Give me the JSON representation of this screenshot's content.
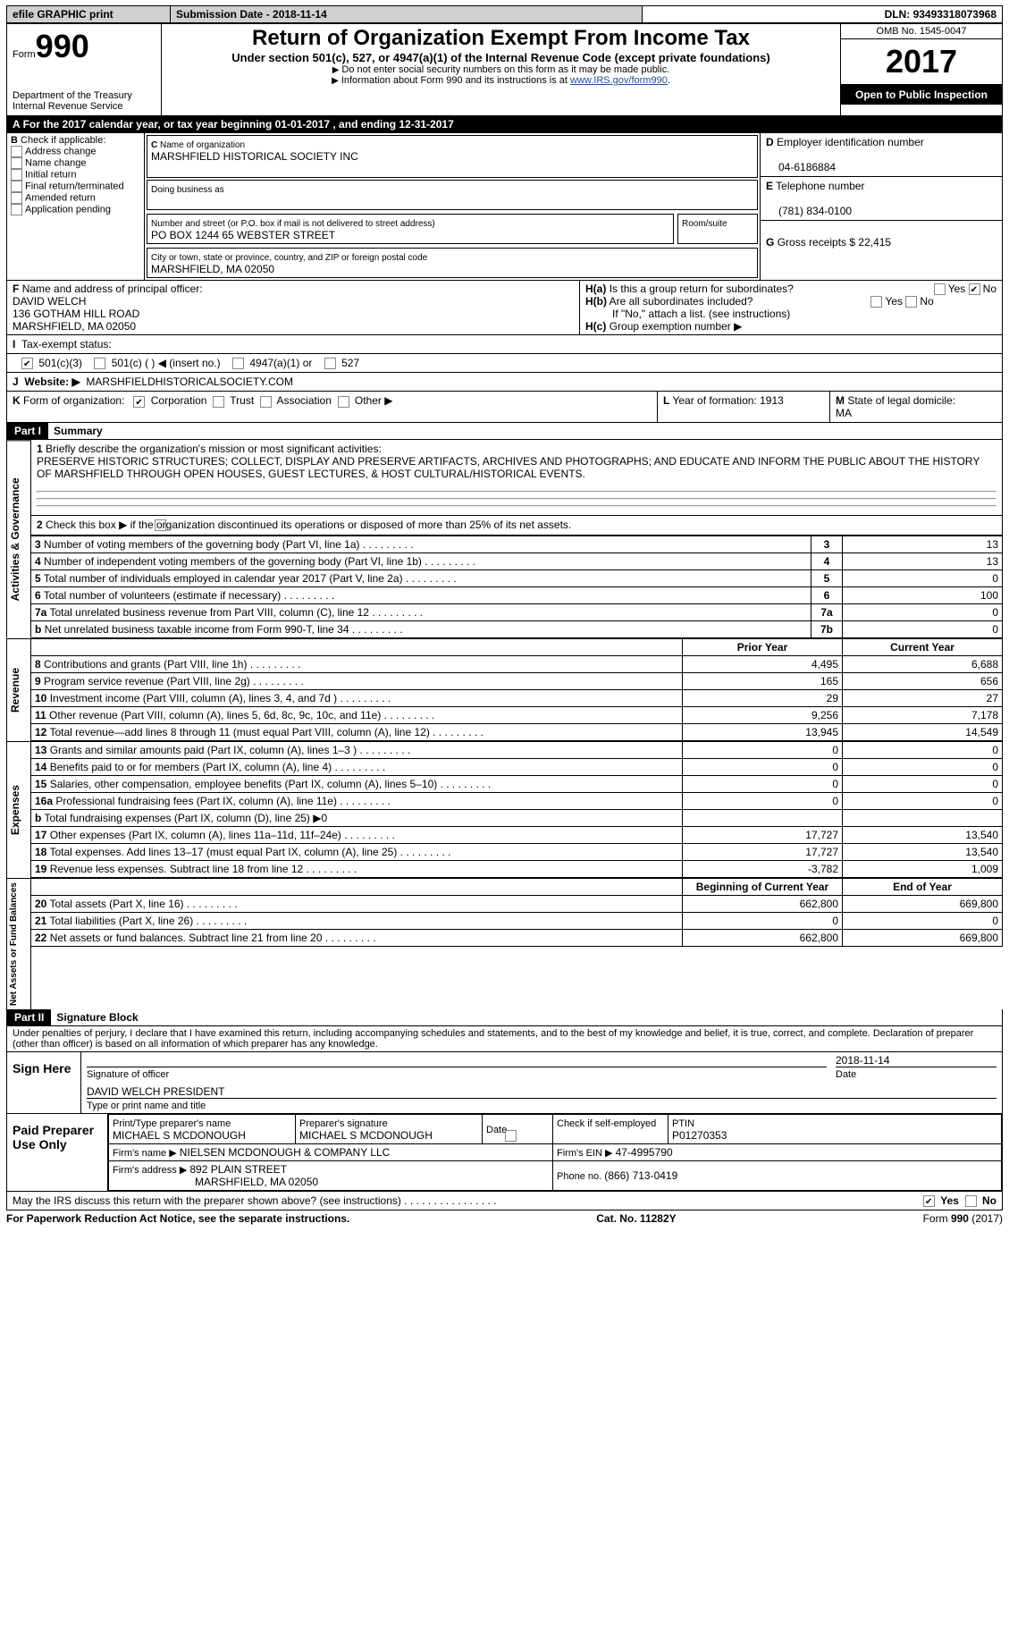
{
  "topbar": {
    "efile": "efile GRAPHIC print",
    "sub_lbl": "Submission Date - ",
    "sub_date": "2018-11-14",
    "dln_lbl": "DLN: ",
    "dln": "93493318073968"
  },
  "header": {
    "form_word": "Form",
    "form_no": "990",
    "dept1": "Department of the Treasury",
    "dept2": "Internal Revenue Service",
    "title": "Return of Organization Exempt From Income Tax",
    "sub": "Under section 501(c), 527, or 4947(a)(1) of the Internal Revenue Code (except private foundations)",
    "note1": "Do not enter social security numbers on this form as it may be made public.",
    "note2": "Information about Form 990 and its instructions is at ",
    "link": "www.IRS.gov/form990",
    "omb": "OMB No. 1545-0047",
    "year": "2017",
    "open": "Open to Public Inspection"
  },
  "a_line": "For the 2017 calendar year, or tax year beginning 01-01-2017    , and ending 12-31-2017",
  "b": {
    "lbl": "Check if applicable:",
    "addr": "Address change",
    "name": "Name change",
    "init": "Initial return",
    "final": "Final return/terminated",
    "amend": "Amended return",
    "app": "Application pending"
  },
  "c": {
    "name_lbl": "Name of organization",
    "name": "MARSHFIELD HISTORICAL SOCIETY INC",
    "dba_lbl": "Doing business as",
    "street_lbl": "Number and street (or P.O. box if mail is not delivered to street address)",
    "room_lbl": "Room/suite",
    "street": "PO BOX 1244 65 WEBSTER STREET",
    "city_lbl": "City or town, state or province, country, and ZIP or foreign postal code",
    "city": "MARSHFIELD, MA  02050"
  },
  "d": {
    "lbl": "Employer identification number",
    "val": "04-6186884"
  },
  "e": {
    "lbl": "Telephone number",
    "val": "(781) 834-0100"
  },
  "g": {
    "lbl": "Gross receipts $ ",
    "val": "22,415"
  },
  "f": {
    "lbl": "Name and address of principal officer:",
    "name": "DAVID WELCH",
    "addr1": "136 GOTHAM HILL ROAD",
    "addr2": "MARSHFIELD, MA  02050"
  },
  "h": {
    "a": "Is this a group return for subordinates?",
    "b": "Are all subordinates included?",
    "b_note": "If \"No,\" attach a list. (see instructions)",
    "c": "Group exemption number ▶",
    "yes": "Yes",
    "no": "No"
  },
  "i": {
    "lbl": "Tax-exempt status:",
    "o1": "501(c)(3)",
    "o2": "501(c) (   ) ◀ (insert no.)",
    "o3": "4947(a)(1) or",
    "o4": "527"
  },
  "j": {
    "lbl": "Website: ▶",
    "val": "MARSHFIELDHISTORICALSOCIETY.COM"
  },
  "k": {
    "lbl": "Form of organization:",
    "o1": "Corporation",
    "o2": "Trust",
    "o3": "Association",
    "o4": "Other ▶"
  },
  "l": {
    "lbl": "Year of formation: ",
    "val": "1913"
  },
  "m": {
    "lbl": "State of legal domicile:",
    "val": "MA"
  },
  "part1": {
    "hdr": "Part I",
    "title": "Summary",
    "vert1": "Activities & Governance",
    "vert2": "Revenue",
    "vert3": "Expenses",
    "vert4": "Net Assets or Fund Balances",
    "l1_lbl": "Briefly describe the organization's mission or most significant activities:",
    "l1_txt": "PRESERVE HISTORIC STRUCTURES; COLLECT, DISPLAY AND PRESERVE ARTIFACTS, ARCHIVES AND PHOTOGRAPHS; AND EDUCATE AND INFORM THE PUBLIC ABOUT THE HISTORY OF MARSHFIELD THROUGH OPEN HOUSES, GUEST LECTURES, & HOST CULTURAL/HISTORICAL EVENTS.",
    "l2": "Check this box ▶       if the organization discontinued its operations or disposed of more than 25% of its net assets.",
    "rows_ag": [
      {
        "n": "3",
        "t": "Number of voting members of the governing body (Part VI, line 1a)",
        "b": "3",
        "v": "13"
      },
      {
        "n": "4",
        "t": "Number of independent voting members of the governing body (Part VI, line 1b)",
        "b": "4",
        "v": "13"
      },
      {
        "n": "5",
        "t": "Total number of individuals employed in calendar year 2017 (Part V, line 2a)",
        "b": "5",
        "v": "0"
      },
      {
        "n": "6",
        "t": "Total number of volunteers (estimate if necessary)",
        "b": "6",
        "v": "100"
      },
      {
        "n": "7a",
        "t": "Total unrelated business revenue from Part VIII, column (C), line 12",
        "b": "7a",
        "v": "0"
      },
      {
        "n": "b",
        "t": "Net unrelated business taxable income from Form 990-T, line 34",
        "b": "7b",
        "v": "0"
      }
    ],
    "col_prior": "Prior Year",
    "col_curr": "Current Year",
    "rows_rev": [
      {
        "n": "8",
        "t": "Contributions and grants (Part VIII, line 1h)",
        "p": "4,495",
        "c": "6,688"
      },
      {
        "n": "9",
        "t": "Program service revenue (Part VIII, line 2g)",
        "p": "165",
        "c": "656"
      },
      {
        "n": "10",
        "t": "Investment income (Part VIII, column (A), lines 3, 4, and 7d )",
        "p": "29",
        "c": "27"
      },
      {
        "n": "11",
        "t": "Other revenue (Part VIII, column (A), lines 5, 6d, 8c, 9c, 10c, and 11e)",
        "p": "9,256",
        "c": "7,178"
      },
      {
        "n": "12",
        "t": "Total revenue—add lines 8 through 11 (must equal Part VIII, column (A), line 12)",
        "p": "13,945",
        "c": "14,549"
      }
    ],
    "rows_exp": [
      {
        "n": "13",
        "t": "Grants and similar amounts paid (Part IX, column (A), lines 1–3 )",
        "p": "0",
        "c": "0"
      },
      {
        "n": "14",
        "t": "Benefits paid to or for members (Part IX, column (A), line 4)",
        "p": "0",
        "c": "0"
      },
      {
        "n": "15",
        "t": "Salaries, other compensation, employee benefits (Part IX, column (A), lines 5–10)",
        "p": "0",
        "c": "0"
      },
      {
        "n": "16a",
        "t": "Professional fundraising fees (Part IX, column (A), line 11e)",
        "p": "0",
        "c": "0"
      },
      {
        "n": "b",
        "t": "Total fundraising expenses (Part IX, column (D), line 25) ▶0",
        "p": "",
        "c": "",
        "grey": true
      },
      {
        "n": "17",
        "t": "Other expenses (Part IX, column (A), lines 11a–11d, 11f–24e)",
        "p": "17,727",
        "c": "13,540"
      },
      {
        "n": "18",
        "t": "Total expenses. Add lines 13–17 (must equal Part IX, column (A), line 25)",
        "p": "17,727",
        "c": "13,540"
      },
      {
        "n": "19",
        "t": "Revenue less expenses. Subtract line 18 from line 12",
        "p": "-3,782",
        "c": "1,009"
      }
    ],
    "col_beg": "Beginning of Current Year",
    "col_end": "End of Year",
    "rows_na": [
      {
        "n": "20",
        "t": "Total assets (Part X, line 16)",
        "p": "662,800",
        "c": "669,800"
      },
      {
        "n": "21",
        "t": "Total liabilities (Part X, line 26)",
        "p": "0",
        "c": "0"
      },
      {
        "n": "22",
        "t": "Net assets or fund balances. Subtract line 21 from line 20",
        "p": "662,800",
        "c": "669,800"
      }
    ]
  },
  "part2": {
    "hdr": "Part II",
    "title": "Signature Block",
    "decl": "Under penalties of perjury, I declare that I have examined this return, including accompanying schedules and statements, and to the best of my knowledge and belief, it is true, correct, and complete. Declaration of preparer (other than officer) is based on all information of which preparer has any knowledge.",
    "sign": "Sign Here",
    "sig_of": "Signature of officer",
    "date": "Date",
    "date_v": "2018-11-14",
    "name_title": "DAVID WELCH PRESIDENT",
    "type_lbl": "Type or print name and title",
    "paid": "Paid Preparer Use Only",
    "prep_name_lbl": "Print/Type preparer's name",
    "prep_name": "MICHAEL S MCDONOUGH",
    "prep_sig_lbl": "Preparer's signature",
    "prep_sig": "MICHAEL S MCDONOUGH",
    "date_lbl": "Date",
    "check_lbl": "Check        if self-employed",
    "ptin_lbl": "PTIN",
    "ptin": "P01270353",
    "firm_name_lbl": "Firm's name    ▶ ",
    "firm_name": "NIELSEN MCDONOUGH & COMPANY LLC",
    "firm_ein_lbl": "Firm's EIN ▶ ",
    "firm_ein": "47-4995790",
    "firm_addr_lbl": "Firm's address ▶ ",
    "firm_addr": "892 PLAIN STREET",
    "firm_city": "MARSHFIELD, MA  02050",
    "phone_lbl": "Phone no. ",
    "phone": "(866) 713-0419",
    "discuss": "May the IRS discuss this return with the preparer shown above? (see instructions)"
  },
  "footer": {
    "l": "For Paperwork Reduction Act Notice, see the separate instructions.",
    "c": "Cat. No. 11282Y",
    "r": "Form 990 (2017)"
  }
}
